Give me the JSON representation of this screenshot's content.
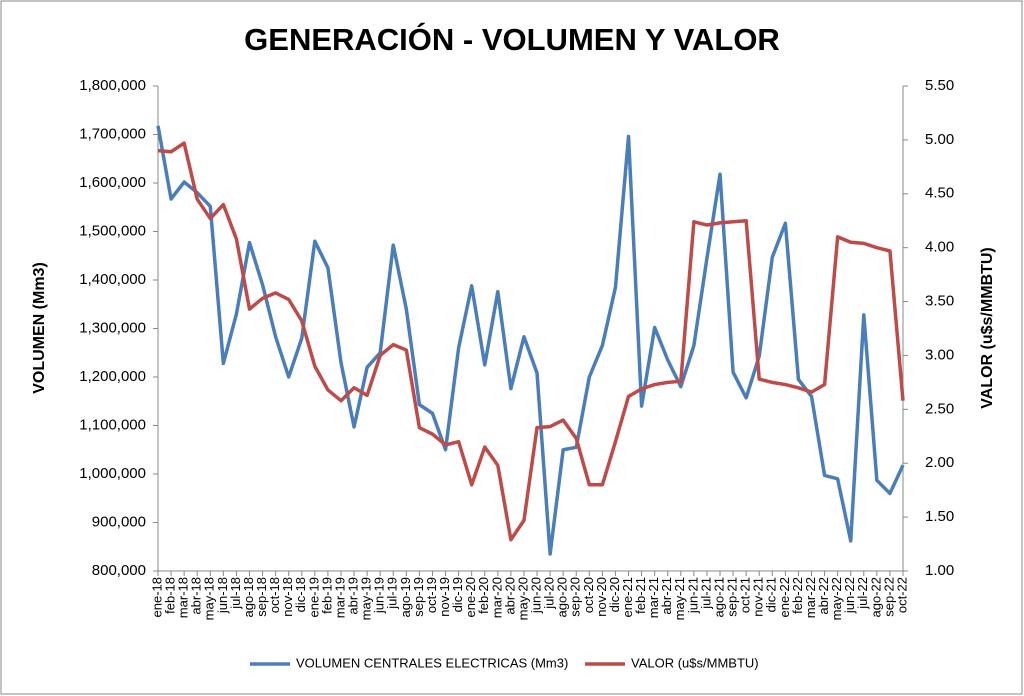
{
  "chart_data": {
    "type": "line",
    "title": "GENERACIÓN - VOLUMEN Y VALOR",
    "y_label": "VOLUMEN (Mm3)",
    "y2_label": "VALOR (u$s/MMBTU)",
    "categories": [
      "ene-18",
      "feb-18",
      "mar-18",
      "abr-18",
      "may-18",
      "jun-18",
      "jul-18",
      "ago-18",
      "sep-18",
      "oct-18",
      "nov-18",
      "dic-18",
      "ene-19",
      "feb-19",
      "mar-19",
      "abr-19",
      "may-19",
      "jun-19",
      "jul-19",
      "ago-19",
      "sep-19",
      "oct-19",
      "nov-19",
      "dic-19",
      "ene-20",
      "feb-20",
      "mar-20",
      "abr-20",
      "may-20",
      "jun-20",
      "jul-20",
      "ago-20",
      "sep-20",
      "oct-20",
      "nov-20",
      "dic-20",
      "ene-21",
      "feb-21",
      "mar-21",
      "abr-21",
      "may-21",
      "jun-21",
      "jul-21",
      "ago-21",
      "sep-21",
      "oct-21",
      "nov-21",
      "dic-21",
      "ene-22",
      "feb-22",
      "mar-22",
      "abr-22",
      "may-22",
      "jun-22",
      "jul-22",
      "ago-22",
      "sep-22",
      "oct-22"
    ],
    "series": [
      {
        "name": "VOLUMEN CENTRALES ELECTRICAS (Mm3)",
        "color": "#4a7ebb",
        "axis": "y",
        "values": [
          1718000,
          1567000,
          1602000,
          1580000,
          1552000,
          1228000,
          1330000,
          1477000,
          1390000,
          1283000,
          1200000,
          1280000,
          1480000,
          1425000,
          1230000,
          1097000,
          1220000,
          1250000,
          1472000,
          1340000,
          1143000,
          1125000,
          1050000,
          1260000,
          1388000,
          1225000,
          1376000,
          1176000,
          1283000,
          1208000,
          835000,
          1050000,
          1055000,
          1200000,
          1265000,
          1385000,
          1696000,
          1140000,
          1302000,
          1235000,
          1180000,
          1265000,
          1445000,
          1618000,
          1210000,
          1157000,
          1243000,
          1447000,
          1517000,
          1195000,
          1160000,
          997000,
          990000,
          862000,
          1328000,
          987000,
          960000,
          1018000
        ]
      },
      {
        "name": "VALOR (u$s/MMBTU)",
        "color": "#be4b48",
        "axis": "y2",
        "values": [
          4.9,
          4.89,
          4.97,
          4.45,
          4.27,
          4.4,
          4.08,
          3.43,
          3.53,
          3.58,
          3.52,
          3.32,
          2.9,
          2.68,
          2.58,
          2.7,
          2.63,
          3.0,
          3.1,
          3.05,
          2.33,
          2.27,
          2.17,
          2.2,
          1.8,
          2.15,
          1.98,
          1.29,
          1.47,
          2.33,
          2.34,
          2.4,
          2.23,
          1.8,
          1.8,
          2.2,
          2.62,
          2.69,
          2.73,
          2.75,
          2.76,
          4.24,
          4.21,
          4.23,
          4.24,
          4.25,
          2.78,
          2.75,
          2.73,
          2.7,
          2.66,
          2.73,
          4.1,
          4.05,
          4.04,
          4.0,
          3.97,
          2.58
        ]
      }
    ],
    "ylim": [
      800000,
      1800000
    ],
    "yticks": [
      {
        "value": 800000,
        "label": "800,000"
      },
      {
        "value": 900000,
        "label": "900,000"
      },
      {
        "value": 1000000,
        "label": "1,000,000"
      },
      {
        "value": 1100000,
        "label": "1,100,000"
      },
      {
        "value": 1200000,
        "label": "1,200,000"
      },
      {
        "value": 1300000,
        "label": "1,300,000"
      },
      {
        "value": 1400000,
        "label": "1,400,000"
      },
      {
        "value": 1500000,
        "label": "1,500,000"
      },
      {
        "value": 1600000,
        "label": "1,600,000"
      },
      {
        "value": 1700000,
        "label": "1,700,000"
      },
      {
        "value": 1800000,
        "label": "1,800,000"
      }
    ],
    "y2lim": [
      1,
      5.5
    ],
    "y2ticks": [
      {
        "value": 1,
        "label": "1.00"
      },
      {
        "value": 1.5,
        "label": "1.50"
      },
      {
        "value": 2,
        "label": "2.00"
      },
      {
        "value": 2.5,
        "label": "2.50"
      },
      {
        "value": 3,
        "label": "3.00"
      },
      {
        "value": 3.5,
        "label": "3.50"
      },
      {
        "value": 4,
        "label": "4.00"
      },
      {
        "value": 4.5,
        "label": "4.50"
      },
      {
        "value": 5,
        "label": "5.00"
      },
      {
        "value": 5.5,
        "label": "5.50"
      }
    ],
    "legend": "bottom"
  }
}
